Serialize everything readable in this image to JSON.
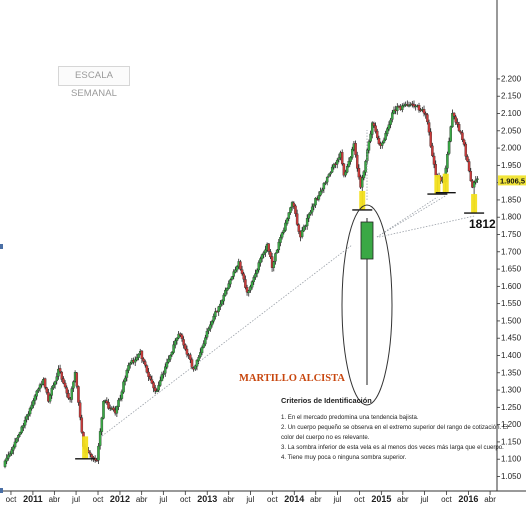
{
  "chart_data": {
    "type": "candlestick",
    "timeframe_label": "ESCALA SEMANAL",
    "x_axis": {
      "tick_labels": [
        "oct",
        "2011",
        "abr",
        "jul",
        "oct",
        "2012",
        "abr",
        "jul",
        "oct",
        "2013",
        "abr",
        "jul",
        "oct",
        "2014",
        "abr",
        "jul",
        "oct",
        "2015",
        "abr",
        "jul",
        "oct",
        "2016",
        "abr"
      ],
      "range": [
        "2010-09-06",
        "2016-04-30"
      ]
    },
    "y_axis": {
      "position": "right",
      "tick_labels": [
        "2.200",
        "2.150",
        "2.100",
        "2.050",
        "2.000",
        "1.950",
        "1.900",
        "1.850",
        "1.800",
        "1.750",
        "1.700",
        "1.650",
        "1.600",
        "1.550",
        "1.500",
        "1.450",
        "1.400",
        "1.350",
        "1.300",
        "1.250",
        "1.200",
        "1.150",
        "1.100",
        "1.050"
      ],
      "range": [
        1040,
        2210
      ]
    },
    "last_price_label": "1.906,5",
    "annotation_level_label": "1812",
    "marked_levels": [
      {
        "date": "2011-08-08",
        "value": 1101
      },
      {
        "date": "2014-10-13",
        "value": 1821
      },
      {
        "date": "2015-08-24",
        "value": 1867
      },
      {
        "date": "2015-09-28",
        "value": 1871
      },
      {
        "date": "2016-01-25",
        "value": 1812
      }
    ],
    "anchors": [
      {
        "date": "2010-09-06",
        "value": 1080
      },
      {
        "date": "2010-11-15",
        "value": 1180
      },
      {
        "date": "2011-02-21",
        "value": 1335
      },
      {
        "date": "2011-03-14",
        "value": 1270
      },
      {
        "date": "2011-04-25",
        "value": 1360
      },
      {
        "date": "2011-06-13",
        "value": 1270
      },
      {
        "date": "2011-07-04",
        "value": 1350
      },
      {
        "date": "2011-08-08",
        "value": 1130
      },
      {
        "date": "2011-10-03",
        "value": 1090
      },
      {
        "date": "2011-10-31",
        "value": 1270
      },
      {
        "date": "2011-12-19",
        "value": 1230
      },
      {
        "date": "2012-02-13",
        "value": 1370
      },
      {
        "date": "2012-04-02",
        "value": 1410
      },
      {
        "date": "2012-06-04",
        "value": 1290
      },
      {
        "date": "2012-09-10",
        "value": 1465
      },
      {
        "date": "2012-11-12",
        "value": 1360
      },
      {
        "date": "2013-01-14",
        "value": 1480
      },
      {
        "date": "2013-05-20",
        "value": 1670
      },
      {
        "date": "2013-06-24",
        "value": 1580
      },
      {
        "date": "2013-09-16",
        "value": 1720
      },
      {
        "date": "2013-10-07",
        "value": 1660
      },
      {
        "date": "2013-12-30",
        "value": 1845
      },
      {
        "date": "2014-02-03",
        "value": 1745
      },
      {
        "date": "2014-04-07",
        "value": 1850
      },
      {
        "date": "2014-07-21",
        "value": 1985
      },
      {
        "date": "2014-08-04",
        "value": 1920
      },
      {
        "date": "2014-09-15",
        "value": 2010
      },
      {
        "date": "2014-10-13",
        "value": 1880
      },
      {
        "date": "2014-12-01",
        "value": 2075
      },
      {
        "date": "2015-01-05",
        "value": 2000
      },
      {
        "date": "2015-03-02",
        "value": 2110
      },
      {
        "date": "2015-05-18",
        "value": 2130
      },
      {
        "date": "2015-07-13",
        "value": 2100
      },
      {
        "date": "2015-08-24",
        "value": 1920
      },
      {
        "date": "2015-09-28",
        "value": 1900
      },
      {
        "date": "2015-11-02",
        "value": 2105
      },
      {
        "date": "2015-12-14",
        "value": 2030
      },
      {
        "date": "2016-01-25",
        "value": 1880
      },
      {
        "date": "2016-02-08",
        "value": 1910
      }
    ],
    "colors": {
      "bull": "#3aa845",
      "bear": "#c83a3a",
      "highlight": "#f2df1c",
      "axis": "#333333",
      "guide": "#9aa0a8"
    }
  },
  "annotation": {
    "pattern_title": "MARTILLO ALCISTA",
    "criteria_heading": "Criterios de Identificación",
    "criteria": [
      "1. En el mercado predomina una tendencia bajista.",
      "2. Un cuerpo pequeño se observa en el extremo superior del rango de cotización. El color del cuerpo no es relevante.",
      "3. La sombra inferior de esta vela es al menos dos veces más larga que el cuerpo.",
      "4. Tiene muy poca o ninguna sombra superior."
    ]
  }
}
